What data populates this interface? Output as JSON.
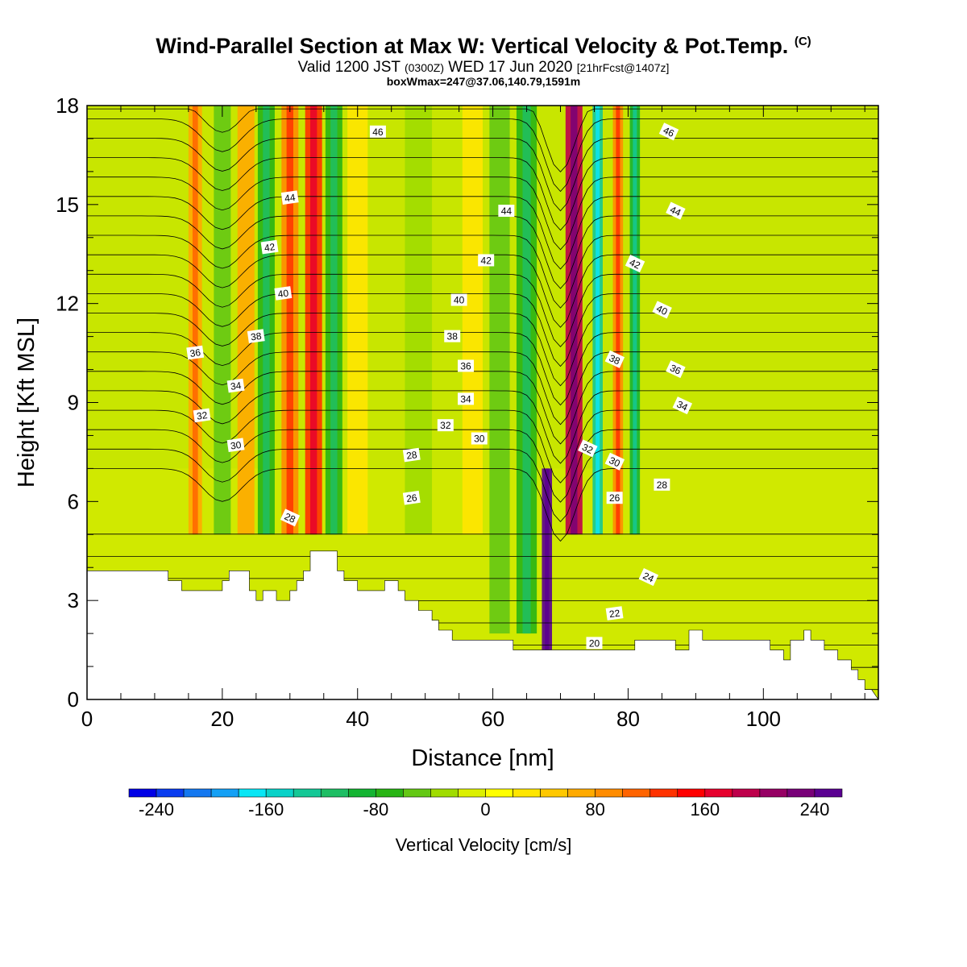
{
  "header": {
    "title": "Wind-Parallel Section at Max W: Vertical Velocity & Pot.Temp.",
    "copyright": "(C)",
    "valid_prefix": "Valid 1200 JST",
    "valid_utc": "(0300Z)",
    "valid_date": "WED 17 Jun 2020",
    "forecast": "[21hrFcst@1407z]",
    "box_info": "boxWmax=247@37.06,140.79,1591m"
  },
  "colorbar": {
    "title": "Vertical Velocity [cm/s]",
    "ticks": [
      "-240",
      "-160",
      "-80",
      "0",
      "80",
      "160",
      "240"
    ],
    "colors": [
      "#0000e6",
      "#0a3cf0",
      "#1478f0",
      "#14a0f5",
      "#0ae6f5",
      "#0ad2c8",
      "#14c896",
      "#1ebe64",
      "#14b432",
      "#28b414",
      "#64c814",
      "#a0dc00",
      "#dcf000",
      "#ffff00",
      "#ffe600",
      "#ffc800",
      "#ffaa00",
      "#ff8c00",
      "#ff6400",
      "#ff3200",
      "#ff0000",
      "#e6002d",
      "#be004b",
      "#960064",
      "#780078",
      "#5a0091"
    ]
  },
  "chart_data": {
    "type": "heatmap",
    "title": "Wind-Parallel Section at Max W: Vertical Velocity & Pot.Temp.",
    "xlabel": "Distance [nm]",
    "ylabel": "Height [Kft MSL]",
    "xlim": [
      0,
      117
    ],
    "ylim": [
      0,
      18
    ],
    "x_ticks": [
      "0",
      "20",
      "40",
      "60",
      "80",
      "100"
    ],
    "y_ticks": [
      "0",
      "3",
      "6",
      "9",
      "12",
      "15",
      "18"
    ],
    "vertical_velocity_bands": [
      {
        "x": 16,
        "width": 2,
        "w": 70
      },
      {
        "x": 20,
        "width": 2.5,
        "w": -60
      },
      {
        "x": 23.5,
        "width": 2.5,
        "w": 60
      },
      {
        "x": 26.5,
        "width": 2.5,
        "w": -70
      },
      {
        "x": 30,
        "width": 2.5,
        "w": 80
      },
      {
        "x": 33.5,
        "width": 2.5,
        "w": 120
      },
      {
        "x": 36.5,
        "width": 2.5,
        "w": -80
      },
      {
        "x": 40,
        "width": 3,
        "w": 30
      },
      {
        "x": 49,
        "width": 4,
        "w": -40
      },
      {
        "x": 57,
        "width": 3,
        "w": 30
      },
      {
        "x": 61,
        "width": 3,
        "w": -50
      },
      {
        "x": 65,
        "width": 3,
        "w": -80
      },
      {
        "x": 72,
        "width": 2.5,
        "w": 190
      },
      {
        "x": 75.5,
        "width": 1.5,
        "w": -130
      },
      {
        "x": 78.5,
        "width": 1.5,
        "w": 90
      },
      {
        "x": 81,
        "width": 1.5,
        "w": -100
      },
      {
        "x": 68,
        "width": 1.5,
        "w": 247
      }
    ],
    "potential_temperature_labels": [
      "46",
      "46",
      "44",
      "44",
      "44",
      "42",
      "42",
      "42",
      "40",
      "40",
      "40",
      "38",
      "38",
      "38",
      "36",
      "36",
      "36",
      "34",
      "34",
      "34",
      "32",
      "32",
      "32",
      "30",
      "30",
      "30",
      "28",
      "28",
      "28",
      "26",
      "26",
      "24",
      "22",
      "20"
    ],
    "terrain_top_kft": [
      3.9,
      3.9,
      3.9,
      3.9,
      3.9,
      3.9,
      3.9,
      3.9,
      3.9,
      3.9,
      3.9,
      3.9,
      3.6,
      3.6,
      3.3,
      3.3,
      3.3,
      3.3,
      3.3,
      3.3,
      3.6,
      3.9,
      3.9,
      3.9,
      3.3,
      3.0,
      3.3,
      3.3,
      3.0,
      3.0,
      3.3,
      3.6,
      3.9,
      4.5,
      4.5,
      4.5,
      4.5,
      3.9,
      3.6,
      3.6,
      3.3,
      3.3,
      3.3,
      3.3,
      3.6,
      3.6,
      3.3,
      3.0,
      3.0,
      2.7,
      2.7,
      2.4,
      2.1,
      2.1,
      1.8,
      1.8,
      1.8,
      1.8,
      1.8,
      1.8,
      1.8,
      1.8,
      1.8,
      1.5,
      1.5,
      1.5,
      1.5,
      1.5,
      1.5,
      1.5,
      1.5,
      1.5,
      1.5,
      1.5,
      1.5,
      1.5,
      1.5,
      1.5,
      1.5,
      1.5,
      1.5,
      1.8,
      1.8,
      1.8,
      1.8,
      1.8,
      1.8,
      1.5,
      1.5,
      2.1,
      2.1,
      1.8,
      1.8,
      1.8,
      1.8,
      1.8,
      1.8,
      1.8,
      1.8,
      1.8,
      1.8,
      1.5,
      1.5,
      1.2,
      1.8,
      1.8,
      2.1,
      1.8,
      1.8,
      1.5,
      1.5,
      1.2,
      1.2,
      0.9,
      0.6,
      0.3
    ]
  }
}
